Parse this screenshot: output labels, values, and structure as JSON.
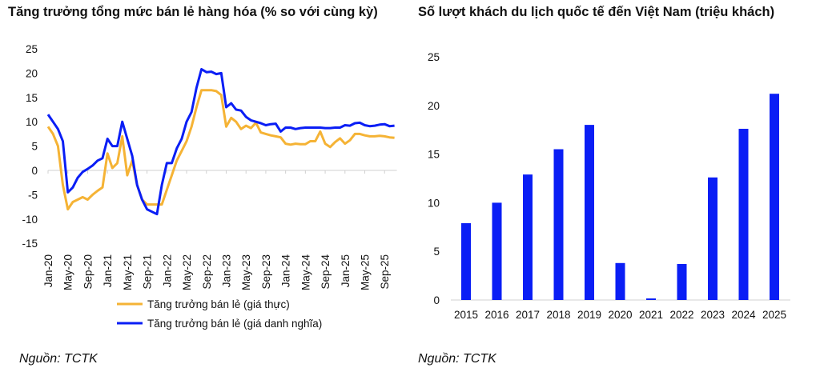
{
  "chart_data": [
    {
      "type": "line",
      "title": "Tăng trưởng tổng mức bán lẻ hàng hóa (% so với cùng kỳ)",
      "xlabel": "",
      "ylabel": "",
      "ylim": [
        -15,
        25
      ],
      "yticks": [
        "25",
        "20",
        "15",
        "10",
        "5",
        "0",
        "-5",
        "-10",
        "-15"
      ],
      "xtick_labels": [
        "Jan-20",
        "May-20",
        "Sep-20",
        "Jan-21",
        "May-21",
        "Sep-21",
        "Jan-22",
        "May-22",
        "Sep-22",
        "Jan-23",
        "May-23",
        "Sep-23",
        "Jan-24",
        "May-24",
        "Sep-24",
        "Jan-25",
        "May-25",
        "Sep-25"
      ],
      "x_start": "Jan-20",
      "x_frequency": "monthly",
      "legend_placement": "bottom",
      "series": [
        {
          "name": "Tăng trưởng bán lẻ (giá thực)",
          "color": "#F5B335",
          "values": [
            9,
            7.5,
            5,
            -3,
            -8,
            -6.5,
            -6,
            -5.5,
            -6,
            -5,
            -4.2,
            -3.5,
            3.5,
            0.5,
            1.5,
            7,
            -1,
            2,
            -3,
            -6,
            -7,
            -7,
            -7,
            -7,
            -4,
            -1,
            2,
            4,
            6,
            9,
            13,
            16.5,
            16.5,
            16.5,
            16.3,
            15.5,
            9,
            10.8,
            10,
            8.5,
            9.2,
            8.7,
            9.8,
            7.8,
            7.5,
            7.2,
            7,
            6.8,
            5.5,
            5.3,
            5.5,
            5.4,
            5.4,
            6,
            6,
            8,
            5.5,
            4.8,
            5.8,
            6.6,
            5.5,
            6.2,
            7.5,
            7.5,
            7.2,
            7,
            7,
            7.1,
            7,
            6.8,
            6.7
          ]
        },
        {
          "name": "Tăng trưởng bán lẻ (giá danh nghĩa)",
          "color": "#0A1EF5",
          "values": [
            11.5,
            10,
            8.5,
            6,
            -4.5,
            -3.5,
            -1.5,
            -0.3,
            0.3,
            1,
            2,
            2.5,
            6.5,
            5,
            5,
            10,
            6.5,
            3,
            -3,
            -6,
            -8,
            -8.5,
            -9,
            -3,
            1.5,
            1.5,
            4.5,
            6.5,
            10,
            12,
            17,
            20.8,
            20.2,
            20.3,
            19.8,
            20,
            13,
            13.8,
            12.5,
            12.3,
            11,
            10.3,
            10,
            9.7,
            9.3,
            9.5,
            9.6,
            8,
            8.8,
            8.8,
            8.5,
            8.7,
            8.8,
            8.8,
            8.8,
            8.8,
            8.7,
            8.7,
            8.8,
            8.8,
            9.3,
            9.2,
            9.7,
            9.8,
            9.3,
            9.1,
            9.2,
            9.4,
            9.5,
            9.1,
            9.2
          ]
        }
      ],
      "source": "Nguồn: TCTK"
    },
    {
      "type": "bar",
      "title": "Số lượt khách du lịch quốc tế đến Việt Nam (triệu khách)",
      "xlabel": "",
      "ylabel": "",
      "ylim": [
        0,
        25
      ],
      "yticks": [
        "25",
        "20",
        "15",
        "10",
        "5",
        "0"
      ],
      "categories": [
        "2015",
        "2016",
        "2017",
        "2018",
        "2019",
        "2020",
        "2021",
        "2022",
        "2023",
        "2024",
        "2025"
      ],
      "values": [
        7.9,
        10.0,
        12.9,
        15.5,
        18.0,
        3.8,
        0.16,
        3.7,
        12.6,
        17.6,
        21.2
      ],
      "color": "#0A1EF5",
      "source": "Nguồn: TCTK"
    }
  ]
}
